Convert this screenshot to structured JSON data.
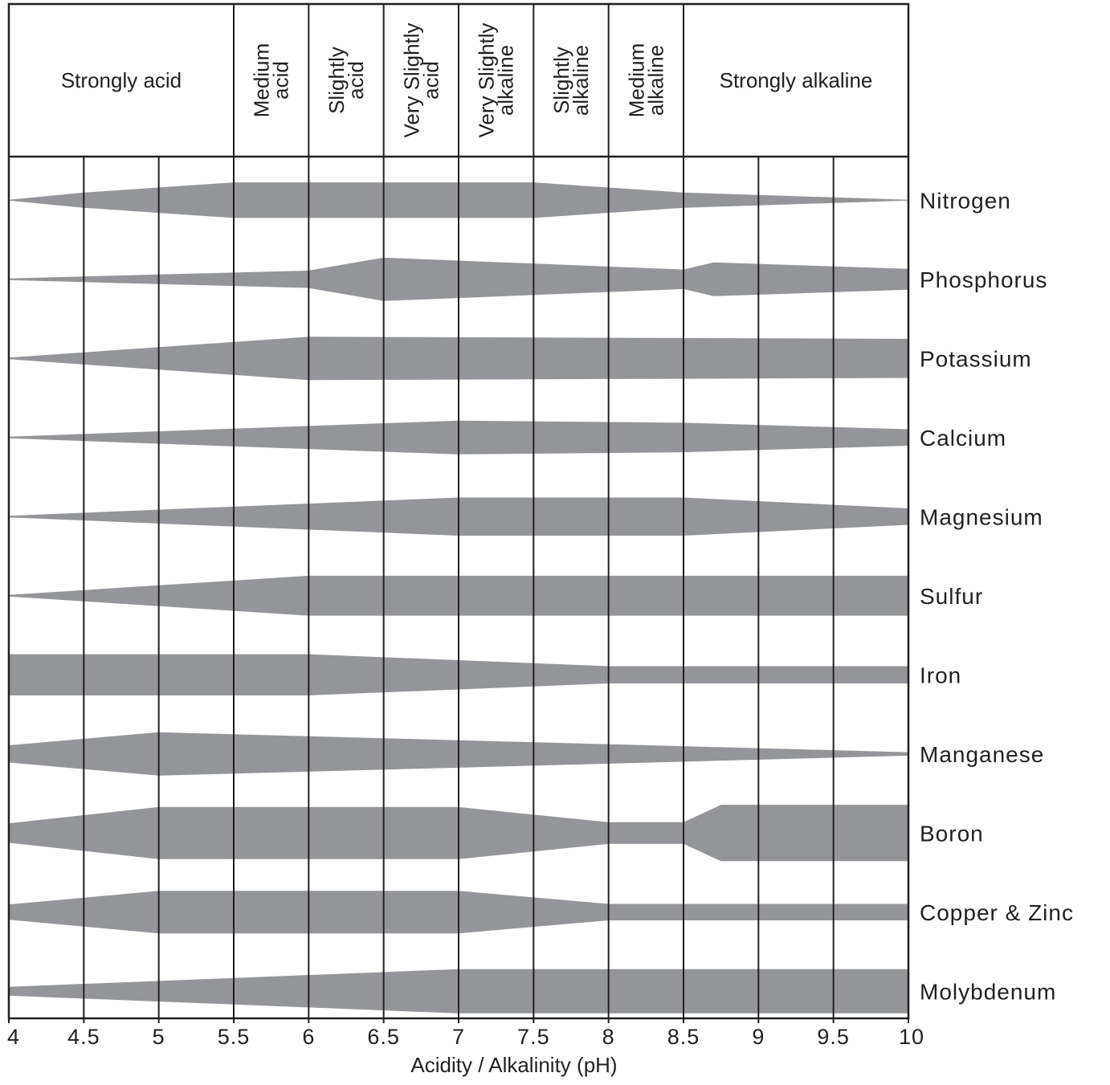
{
  "chart_data": {
    "type": "area",
    "xlabel": "Acidity / Alkalinity (pH)",
    "xlim": [
      4,
      10
    ],
    "x_ticks": [
      "4",
      "4.5",
      "5",
      "5.5",
      "6",
      "6.5",
      "7",
      "7.5",
      "8",
      "8.5",
      "9",
      "9.5",
      "10"
    ],
    "grid": true,
    "band_color": "#939598",
    "line_color": "#231f20",
    "header_ranges": [
      {
        "label": "Strongly acid",
        "from": 4,
        "to": 5.5,
        "orientation": "horizontal"
      },
      {
        "label": "Medium\nacid",
        "from": 5.5,
        "to": 6,
        "orientation": "vertical"
      },
      {
        "label": "Slightly\nacid",
        "from": 6,
        "to": 6.5,
        "orientation": "vertical"
      },
      {
        "label": "Very Slightly\nacid",
        "from": 6.5,
        "to": 7,
        "orientation": "vertical"
      },
      {
        "label": "Very Slightly\nalkaline",
        "from": 7,
        "to": 7.5,
        "orientation": "vertical"
      },
      {
        "label": "Slightly\nalkaline",
        "from": 7.5,
        "to": 8,
        "orientation": "vertical"
      },
      {
        "label": "Medium\nalkaline",
        "from": 8,
        "to": 8.5,
        "orientation": "vertical"
      },
      {
        "label": "Strongly alkaline",
        "from": 8.5,
        "to": 10,
        "orientation": "horizontal"
      }
    ],
    "series": [
      {
        "name": "Nitrogen",
        "ph": [
          4,
          4.5,
          5.5,
          7.5,
          8.5,
          10
        ],
        "availability": [
          0.02,
          0.35,
          0.82,
          0.82,
          0.35,
          0.02
        ]
      },
      {
        "name": "Phosphorus",
        "ph": [
          4,
          6,
          6.5,
          8.5,
          8.7,
          10
        ],
        "availability": [
          0.04,
          0.4,
          1.0,
          0.45,
          0.78,
          0.48
        ]
      },
      {
        "name": "Potassium",
        "ph": [
          4,
          6,
          10
        ],
        "availability": [
          0.04,
          1.0,
          0.9
        ]
      },
      {
        "name": "Calcium",
        "ph": [
          4,
          7,
          8.5,
          10
        ],
        "availability": [
          0.04,
          0.78,
          0.68,
          0.38
        ]
      },
      {
        "name": "Magnesium",
        "ph": [
          4,
          7,
          8.5,
          10
        ],
        "availability": [
          0.04,
          0.88,
          0.88,
          0.38
        ]
      },
      {
        "name": "Sulfur",
        "ph": [
          4,
          6,
          10
        ],
        "availability": [
          0.04,
          0.92,
          0.92
        ]
      },
      {
        "name": "Iron",
        "ph": [
          4,
          6,
          8,
          10
        ],
        "availability": [
          0.95,
          0.95,
          0.4,
          0.4
        ]
      },
      {
        "name": "Manganese",
        "ph": [
          4,
          5,
          10
        ],
        "availability": [
          0.4,
          1.0,
          0.08
        ]
      },
      {
        "name": "Boron",
        "ph": [
          4,
          5,
          7,
          8,
          8.5,
          8.75,
          10
        ],
        "availability": [
          0.45,
          1.2,
          1.2,
          0.5,
          0.5,
          1.3,
          1.3
        ]
      },
      {
        "name": "Copper & Zinc",
        "ph": [
          4,
          5,
          7,
          8,
          10
        ],
        "availability": [
          0.35,
          0.98,
          0.98,
          0.38,
          0.38
        ]
      },
      {
        "name": "Molybdenum",
        "ph": [
          4,
          7,
          10
        ],
        "availability": [
          0.2,
          1.02,
          1.02
        ]
      }
    ]
  }
}
